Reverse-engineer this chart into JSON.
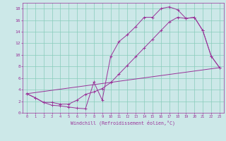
{
  "xlabel": "Windchill (Refroidissement éolien,°C)",
  "bg_color": "#cce8e8",
  "grid_color": "#88ccbb",
  "line_color": "#993399",
  "xlim": [
    -0.5,
    23.5
  ],
  "ylim": [
    0,
    19
  ],
  "xticks": [
    0,
    1,
    2,
    3,
    4,
    5,
    6,
    7,
    8,
    9,
    10,
    11,
    12,
    13,
    14,
    15,
    16,
    17,
    18,
    19,
    20,
    21,
    22,
    23
  ],
  "yticks": [
    0,
    2,
    4,
    6,
    8,
    10,
    12,
    14,
    16,
    18
  ],
  "line1_x": [
    0,
    1,
    2,
    3,
    4,
    5,
    6,
    7,
    8,
    9,
    10,
    11,
    12,
    13,
    14,
    15,
    16,
    17,
    18,
    19,
    20,
    21,
    22,
    23
  ],
  "line1_y": [
    3.3,
    2.6,
    1.8,
    1.3,
    1.2,
    1.0,
    0.8,
    0.7,
    5.3,
    2.2,
    9.7,
    12.3,
    13.5,
    14.9,
    16.5,
    16.5,
    18.0,
    18.3,
    17.8,
    16.3,
    16.5,
    14.2,
    9.8,
    7.8
  ],
  "line2_x": [
    0,
    1,
    2,
    3,
    4,
    5,
    6,
    7,
    8,
    9,
    10,
    11,
    12,
    13,
    14,
    15,
    16,
    17,
    18,
    19,
    20,
    21,
    22,
    23
  ],
  "line2_y": [
    3.3,
    2.6,
    1.8,
    1.8,
    1.5,
    1.5,
    2.2,
    3.2,
    3.6,
    4.2,
    5.2,
    6.7,
    8.2,
    9.7,
    11.2,
    12.7,
    14.2,
    15.7,
    16.5,
    16.3,
    16.5,
    14.2,
    9.8,
    7.8
  ],
  "line3_x": [
    0,
    23
  ],
  "line3_y": [
    3.3,
    7.8
  ]
}
